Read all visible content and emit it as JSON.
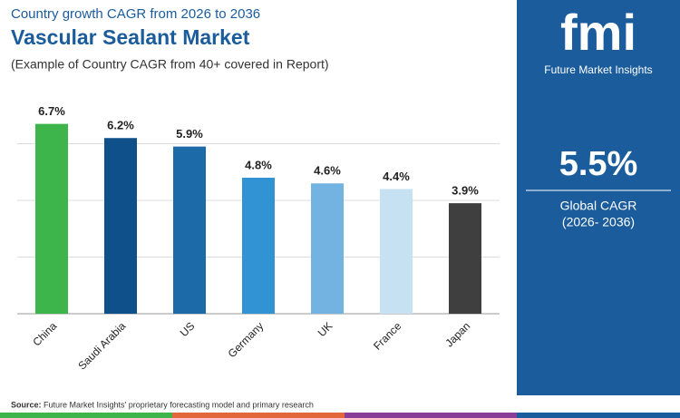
{
  "chart_data": {
    "type": "bar",
    "subtitle_top": "Country growth CAGR from 2026 to 2036",
    "title": "Vascular Sealant Market",
    "subtitle": "(Example of Country CAGR from 40+ covered in Report)",
    "categories": [
      "China",
      "Saudi Arabia",
      "US",
      "Germany",
      "UK",
      "France",
      "Japan"
    ],
    "values": [
      6.7,
      6.2,
      5.9,
      4.8,
      4.6,
      4.4,
      3.9
    ],
    "value_labels": [
      "6.7%",
      "6.2%",
      "5.9%",
      "4.8%",
      "4.6%",
      "4.4%",
      "3.9%"
    ],
    "colors": [
      "#3db54a",
      "#0f4f8a",
      "#1d6aa8",
      "#3192d4",
      "#72b3e2",
      "#c6e2f2",
      "#3f3f3f"
    ],
    "ylim": [
      0,
      8
    ],
    "yticks": [
      0,
      2,
      4,
      6
    ],
    "grid": true
  },
  "panel": {
    "logo": "fmi",
    "brand": "Future Market Insights",
    "value": "5.5%",
    "label": "Global CAGR",
    "period": "(2026- 2036)",
    "url": "www.futuremarketinsights.com"
  },
  "footer": {
    "source_label": "Source:",
    "source": "Future Market Insights' proprietary forecasting model and primary research"
  }
}
